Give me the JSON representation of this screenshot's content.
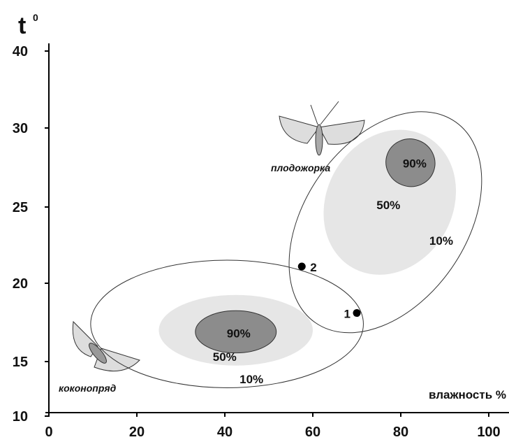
{
  "chart_data": {
    "type": "ellipse",
    "ylabel": "t",
    "ylabel_sup": "0",
    "xlabel": "влажность %",
    "xlim": [
      0,
      107
    ],
    "xticks": [
      0,
      20,
      40,
      60,
      80,
      100
    ],
    "ylim": [
      10,
      41
    ],
    "yticks": [
      10,
      15,
      20,
      25,
      30,
      40
    ],
    "regions": [
      {
        "label": "10%",
        "cx": 40.5,
        "cy": 17.4,
        "rx": 31,
        "ry": 4.4,
        "angle": 0,
        "fill": "none"
      },
      {
        "label": "50%",
        "cx": 42.5,
        "cy": 17.0,
        "rx": 17.5,
        "ry": 2.3,
        "angle": 0,
        "fill": "#e6e6e6"
      },
      {
        "label": "90%",
        "cx": 42.5,
        "cy": 16.9,
        "rx": 9.2,
        "ry": 1.35,
        "angle": 0,
        "fill": "#8c8c8c"
      },
      {
        "label": "10%",
        "cx": 76.5,
        "cy": 24.0,
        "rx": 18.3,
        "ry": 8.5,
        "angle": 35,
        "fill": "none"
      },
      {
        "label": "50%",
        "cx": 77.5,
        "cy": 25.3,
        "rx": 14.3,
        "ry": 4.9,
        "angle": 30,
        "fill": "#e6e6e6"
      },
      {
        "label": "90%",
        "cx": 82.2,
        "cy": 27.8,
        "rx": 5.6,
        "ry": 1.5,
        "angle": 20,
        "fill": "#8c8c8c"
      }
    ],
    "points": {
      "labels": [
        "1",
        "2"
      ],
      "x": [
        70,
        57.5
      ],
      "y": [
        18.1,
        21.1
      ]
    },
    "annotations": [
      "плодожорка",
      "коконопряд"
    ]
  }
}
